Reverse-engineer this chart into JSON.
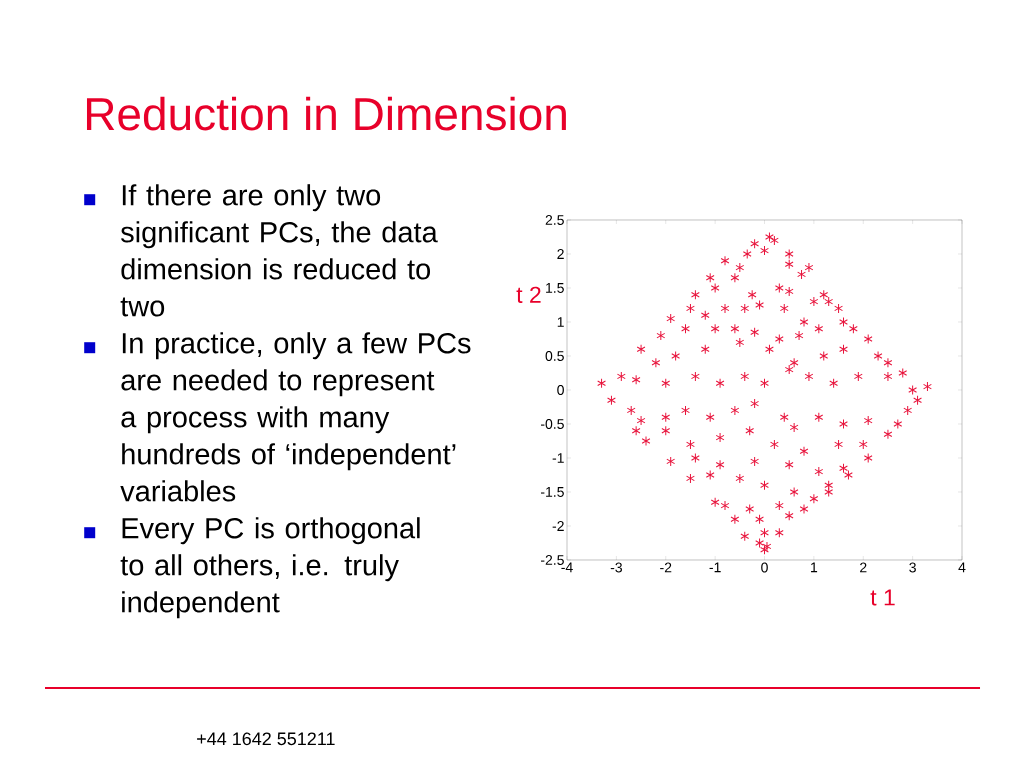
{
  "chart_data": {
    "type": "scatter",
    "title": "Reduction in Dimension",
    "xlabel": "t 1",
    "ylabel": "t 2",
    "annotations": [
      "If there are only two significant PCs, the data dimension is reduced to two",
      "In practice, only a few PCs are needed to represent a process with many hundreds of ‘independent’ variables",
      "Every PC is orthogonal to all others, i.e. truly independent",
      "+44 1642 551211"
    ],
    "xlim": [
      -4,
      4
    ],
    "ylim": [
      -2.5,
      2.5
    ],
    "xticks": [
      -4,
      -3,
      -2,
      -1,
      0,
      1,
      2,
      3,
      4
    ],
    "yticks": [
      -2.5,
      -2,
      -1.5,
      -1,
      -0.5,
      0,
      0.5,
      1,
      1.5,
      2,
      2.5
    ],
    "grid": false,
    "legend": false,
    "marker": "cross",
    "series": [
      {
        "color": "#e8143c",
        "x": [
          0.1,
          0.2,
          -0.2,
          0,
          -0.35,
          0.5,
          0.5,
          -0.8,
          -0.5,
          0.75,
          0.9,
          -1.1,
          -0.6,
          -0.25,
          -0.1,
          0.3,
          0.5,
          1.2,
          1.3,
          -1.4,
          -1.0,
          -1.5,
          -1.2,
          -0.8,
          -0.4,
          0.4,
          0.8,
          1.0,
          1.5,
          1.6,
          -1.9,
          -2.1,
          -1.6,
          -1.0,
          -0.6,
          -0.2,
          0.3,
          0.7,
          1.1,
          1.8,
          2.1,
          -2.5,
          -2.2,
          -1.8,
          -1.2,
          -0.5,
          0.1,
          0.6,
          1.2,
          1.6,
          2.3,
          2.5,
          -2.9,
          -3.3,
          -3.1,
          -2.6,
          -2.0,
          -1.4,
          -0.9,
          -0.4,
          0.0,
          0.5,
          0.9,
          1.4,
          1.9,
          2.5,
          2.8,
          3.0,
          3.3,
          3.1,
          2.9,
          -2.7,
          -2.5,
          -2.6,
          -2.4,
          -2.0,
          -1.6,
          -1.1,
          -0.6,
          -0.2,
          0.4,
          0.6,
          1.1,
          1.6,
          2.1,
          2.5,
          2.7,
          -2.0,
          -1.5,
          -0.9,
          -0.3,
          0.2,
          0.8,
          1.5,
          2.0,
          2.1,
          -1.9,
          -1.4,
          -0.9,
          -0.2,
          0.5,
          1.1,
          1.6,
          1.7,
          -1.5,
          -1.1,
          -0.5,
          0.0,
          0.6,
          1.3,
          1.3,
          -1.0,
          -0.8,
          -0.3,
          0.3,
          0.8,
          1.0,
          -0.6,
          -0.1,
          0.5,
          -0.4,
          0.0,
          0.3,
          -0.1,
          0.05,
          0.0
        ],
        "values": [
          2.25,
          2.2,
          2.15,
          2.05,
          2.0,
          2.0,
          1.85,
          1.9,
          1.8,
          1.7,
          1.8,
          1.65,
          1.65,
          1.4,
          1.25,
          1.5,
          1.45,
          1.4,
          1.3,
          1.4,
          1.5,
          1.2,
          1.1,
          1.2,
          1.2,
          1.2,
          1.0,
          1.3,
          1.2,
          1.0,
          1.05,
          0.8,
          0.9,
          0.9,
          0.9,
          0.85,
          0.75,
          0.8,
          0.9,
          0.9,
          0.75,
          0.6,
          0.4,
          0.5,
          0.6,
          0.7,
          0.6,
          0.4,
          0.5,
          0.6,
          0.5,
          0.4,
          0.2,
          0.1,
          -0.15,
          0.15,
          0.1,
          0.2,
          0.1,
          0.2,
          0.1,
          0.3,
          0.2,
          0.1,
          0.2,
          0.2,
          0.25,
          0.0,
          0.05,
          -0.15,
          -0.3,
          -0.3,
          -0.45,
          -0.6,
          -0.75,
          -0.4,
          -0.3,
          -0.4,
          -0.3,
          -0.2,
          -0.4,
          -0.55,
          -0.4,
          -0.5,
          -0.45,
          -0.65,
          -0.5,
          -0.6,
          -0.8,
          -0.7,
          -0.6,
          -0.8,
          -0.9,
          -0.8,
          -0.8,
          -1.0,
          -1.05,
          -1.0,
          -1.1,
          -1.05,
          -1.1,
          -1.2,
          -1.15,
          -1.25,
          -1.3,
          -1.25,
          -1.3,
          -1.4,
          -1.5,
          -1.5,
          -1.4,
          -1.65,
          -1.7,
          -1.75,
          -1.7,
          -1.75,
          -1.6,
          -1.9,
          -1.9,
          -1.85,
          -2.15,
          -2.1,
          -2.1,
          -2.25,
          -2.3,
          -2.35
        ]
      }
    ]
  }
}
